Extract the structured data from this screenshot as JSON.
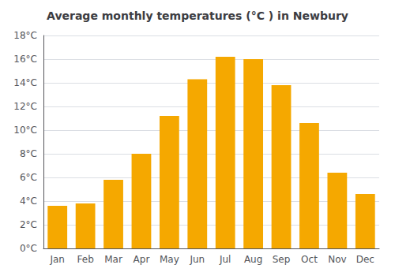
{
  "chart_data": {
    "type": "bar",
    "title": "Average monthly temperatures (°C ) in Newbury",
    "categories": [
      "Jan",
      "Feb",
      "Mar",
      "Apr",
      "May",
      "Jun",
      "Jul",
      "Aug",
      "Sep",
      "Oct",
      "Nov",
      "Dec"
    ],
    "values": [
      3.6,
      3.8,
      5.8,
      8.0,
      11.2,
      14.3,
      16.2,
      16.0,
      13.8,
      10.6,
      6.4,
      4.6
    ],
    "color": "#F5A800",
    "ylim": [
      0,
      18
    ],
    "yticks": [
      {
        "value": 0,
        "label": "0°C"
      },
      {
        "value": 2,
        "label": "2°C"
      },
      {
        "value": 4,
        "label": "4°C"
      },
      {
        "value": 6,
        "label": "6°C"
      },
      {
        "value": 8,
        "label": "8°C"
      },
      {
        "value": 10,
        "label": "10°C"
      },
      {
        "value": 12,
        "label": "12°C"
      },
      {
        "value": 14,
        "label": "14°C"
      },
      {
        "value": 16,
        "label": "16°C"
      },
      {
        "value": 18,
        "label": "18°C"
      }
    ],
    "grid": true
  }
}
